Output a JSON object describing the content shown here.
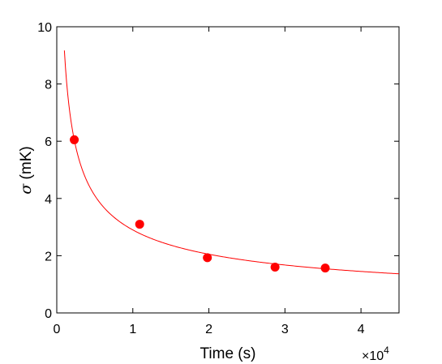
{
  "chart_data": {
    "type": "scatter",
    "title": "",
    "xlabel": "Time (s)",
    "ylabel_symbol": "σ",
    "ylabel_unit": " (mK)",
    "x_multiplier": {
      "base": "×10",
      "exponent": "4"
    },
    "xlim": [
      0,
      45000
    ],
    "ylim": [
      0,
      10
    ],
    "xticks": [
      0,
      10000,
      20000,
      30000,
      40000
    ],
    "xtick_labels": [
      "0",
      "1",
      "2",
      "3",
      "4"
    ],
    "yticks": [
      0,
      2,
      4,
      6,
      8,
      10
    ],
    "ytick_labels": [
      "0",
      "2",
      "4",
      "6",
      "8",
      "10"
    ],
    "grid": false,
    "legend": "none",
    "series": [
      {
        "kind": "points",
        "color": "#ff0000",
        "points": [
          {
            "x": 2300,
            "y": 6.05
          },
          {
            "x": 10900,
            "y": 3.1
          },
          {
            "x": 19800,
            "y": 1.93
          },
          {
            "x": 28700,
            "y": 1.6
          },
          {
            "x": 35300,
            "y": 1.57
          }
        ]
      },
      {
        "kind": "fit-line",
        "color": "#ff0000",
        "model": "y = a / sqrt(x)",
        "a": 290,
        "x_start": 1000,
        "x_end": 45000
      }
    ]
  }
}
